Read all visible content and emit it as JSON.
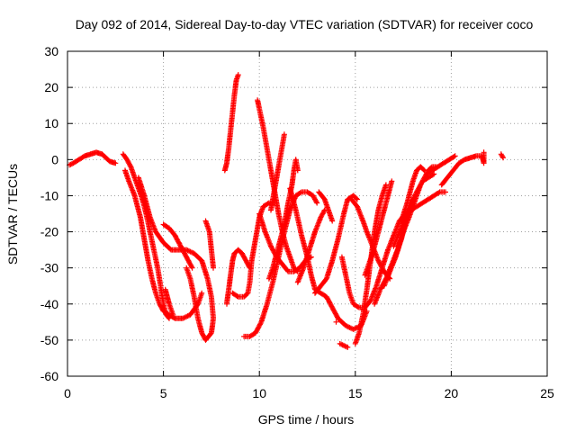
{
  "chart_data": {
    "type": "scatter",
    "title": "Day 092 of 2014, Sidereal Day-to-day VTEC variation (SDTVAR) for receiver coco",
    "xlabel": "GPS time / hours",
    "ylabel": "SDTVAR / TECUs",
    "xlim": [
      0,
      25
    ],
    "ylim": [
      -60,
      30
    ],
    "xticks": [
      0,
      5,
      10,
      15,
      20,
      25
    ],
    "yticks": [
      -60,
      -50,
      -40,
      -30,
      -20,
      -10,
      0,
      10,
      20,
      30
    ],
    "grid": true,
    "marker": "+",
    "color": "#ff0000",
    "series": [
      {
        "points": [
          [
            0.1,
            -1.5
          ],
          [
            0.3,
            -1
          ],
          [
            0.6,
            0
          ],
          [
            0.9,
            1
          ],
          [
            1.2,
            1.5
          ],
          [
            1.5,
            2
          ],
          [
            1.8,
            1.5
          ],
          [
            2.0,
            0.5
          ],
          [
            2.2,
            -0.5
          ],
          [
            2.5,
            -1
          ]
        ]
      },
      {
        "points": [
          [
            2.9,
            1.5
          ],
          [
            3.1,
            0
          ],
          [
            3.3,
            -2
          ],
          [
            3.5,
            -5
          ],
          [
            3.7,
            -8
          ],
          [
            3.9,
            -11
          ],
          [
            4.1,
            -15
          ],
          [
            4.3,
            -20
          ],
          [
            4.5,
            -25
          ],
          [
            4.7,
            -30
          ],
          [
            4.85,
            -35
          ],
          [
            5.0,
            -40
          ],
          [
            5.15,
            -43
          ],
          [
            5.3,
            -44
          ]
        ]
      },
      {
        "points": [
          [
            3.0,
            -3
          ],
          [
            3.2,
            -6
          ],
          [
            3.5,
            -10
          ],
          [
            3.8,
            -16
          ],
          [
            4.0,
            -22
          ],
          [
            4.2,
            -28
          ],
          [
            4.4,
            -33
          ],
          [
            4.6,
            -37
          ],
          [
            4.8,
            -40
          ],
          [
            5.0,
            -42
          ],
          [
            5.3,
            -43
          ],
          [
            5.6,
            -44
          ],
          [
            6.0,
            -44
          ],
          [
            6.4,
            -43
          ],
          [
            6.8,
            -40
          ],
          [
            7.0,
            -37
          ]
        ]
      },
      {
        "points": [
          [
            3.7,
            -5
          ],
          [
            4.0,
            -10
          ],
          [
            4.3,
            -16
          ],
          [
            4.6,
            -20
          ],
          [
            5.0,
            -23
          ],
          [
            5.4,
            -25
          ],
          [
            5.8,
            -25
          ],
          [
            6.2,
            -25
          ],
          [
            6.6,
            -26
          ],
          [
            7.0,
            -28
          ],
          [
            7.3,
            -33
          ],
          [
            7.5,
            -38
          ],
          [
            7.6,
            -44
          ],
          [
            7.5,
            -48
          ],
          [
            7.2,
            -50
          ],
          [
            7.0,
            -48
          ],
          [
            6.8,
            -44
          ],
          [
            6.6,
            -38
          ],
          [
            6.4,
            -33
          ],
          [
            6.2,
            -30
          ]
        ]
      },
      {
        "points": [
          [
            5.0,
            -18
          ],
          [
            5.3,
            -19
          ],
          [
            5.6,
            -21
          ],
          [
            5.9,
            -24
          ],
          [
            6.2,
            -27
          ],
          [
            6.5,
            -30
          ]
        ]
      },
      {
        "points": [
          [
            5.1,
            -36
          ],
          [
            5.2,
            -38
          ],
          [
            5.3,
            -40
          ],
          [
            5.5,
            -43
          ]
        ]
      },
      {
        "points": [
          [
            7.2,
            -17
          ],
          [
            7.4,
            -20
          ],
          [
            7.5,
            -25
          ],
          [
            7.6,
            -30
          ]
        ]
      },
      {
        "points": [
          [
            8.2,
            -3
          ],
          [
            8.3,
            -1
          ],
          [
            8.4,
            3
          ],
          [
            8.5,
            8
          ],
          [
            8.6,
            13
          ],
          [
            8.7,
            18
          ],
          [
            8.8,
            22
          ],
          [
            8.9,
            23.5
          ]
        ]
      },
      {
        "points": [
          [
            8.3,
            -40
          ],
          [
            8.4,
            -36
          ],
          [
            8.5,
            -32
          ],
          [
            8.6,
            -28
          ],
          [
            8.7,
            -26
          ],
          [
            8.9,
            -25
          ],
          [
            9.1,
            -26
          ],
          [
            9.3,
            -28
          ],
          [
            9.5,
            -30
          ]
        ]
      },
      {
        "points": [
          [
            8.6,
            -37
          ],
          [
            8.9,
            -38
          ],
          [
            9.2,
            -38
          ],
          [
            9.4,
            -37
          ],
          [
            9.5,
            -34
          ],
          [
            9.6,
            -28
          ],
          [
            9.8,
            -22
          ],
          [
            10.0,
            -16
          ],
          [
            10.2,
            -13
          ],
          [
            10.5,
            -12
          ],
          [
            10.8,
            -12
          ]
        ]
      },
      {
        "points": [
          [
            9.9,
            16.5
          ],
          [
            10.0,
            14
          ],
          [
            10.2,
            9
          ],
          [
            10.4,
            3
          ],
          [
            10.6,
            -3
          ],
          [
            10.8,
            -9
          ],
          [
            11.0,
            -15
          ],
          [
            11.2,
            -20
          ],
          [
            11.4,
            -24
          ],
          [
            11.6,
            -27
          ],
          [
            11.8,
            -30
          ],
          [
            12.0,
            -31
          ]
        ]
      },
      {
        "points": [
          [
            9.2,
            -49
          ],
          [
            9.5,
            -49
          ],
          [
            9.8,
            -48
          ],
          [
            10.1,
            -45
          ],
          [
            10.4,
            -40
          ],
          [
            10.7,
            -34
          ],
          [
            11.0,
            -27
          ],
          [
            11.3,
            -20
          ],
          [
            11.6,
            -14
          ],
          [
            11.9,
            -10
          ],
          [
            12.2,
            -9
          ],
          [
            12.5,
            -9
          ],
          [
            12.8,
            -10
          ],
          [
            13.0,
            -12
          ]
        ]
      },
      {
        "points": [
          [
            10.0,
            -15
          ],
          [
            10.3,
            -20
          ],
          [
            10.6,
            -24
          ],
          [
            10.9,
            -27
          ],
          [
            11.2,
            -29
          ],
          [
            11.5,
            -31
          ],
          [
            11.8,
            -31
          ],
          [
            12.1,
            -30
          ],
          [
            12.4,
            -28
          ],
          [
            12.7,
            -27
          ]
        ]
      },
      {
        "points": [
          [
            10.6,
            -14
          ],
          [
            10.8,
            -8
          ],
          [
            11.0,
            -2
          ],
          [
            11.2,
            4
          ],
          [
            11.3,
            7
          ]
        ]
      },
      {
        "points": [
          [
            10.5,
            -33
          ],
          [
            10.7,
            -30
          ],
          [
            10.9,
            -26
          ],
          [
            11.1,
            -22
          ],
          [
            11.3,
            -18
          ],
          [
            11.5,
            -12
          ],
          [
            11.7,
            -7
          ],
          [
            11.8,
            -3
          ],
          [
            11.9,
            0
          ],
          [
            12.0,
            -3
          ]
        ]
      },
      {
        "points": [
          [
            11.6,
            -8
          ],
          [
            11.9,
            -14
          ],
          [
            12.2,
            -21
          ],
          [
            12.5,
            -27
          ],
          [
            12.7,
            -32
          ],
          [
            12.9,
            -36
          ],
          [
            13.2,
            -37
          ],
          [
            13.5,
            -38
          ],
          [
            13.8,
            -41
          ],
          [
            14.1,
            -44
          ],
          [
            14.5,
            -46
          ],
          [
            14.9,
            -47
          ],
          [
            15.3,
            -46
          ],
          [
            15.6,
            -42
          ]
        ]
      },
      {
        "points": [
          [
            12.0,
            -34
          ],
          [
            12.3,
            -30
          ],
          [
            12.6,
            -25
          ],
          [
            12.9,
            -20
          ],
          [
            13.2,
            -16
          ],
          [
            13.4,
            -14
          ]
        ]
      },
      {
        "points": [
          [
            12.9,
            -37
          ],
          [
            13.2,
            -35
          ],
          [
            13.5,
            -33
          ],
          [
            13.8,
            -28
          ],
          [
            14.1,
            -22
          ],
          [
            14.4,
            -15
          ],
          [
            14.6,
            -11
          ],
          [
            14.9,
            -10
          ],
          [
            15.1,
            -11
          ]
        ]
      },
      {
        "points": [
          [
            13.1,
            -9
          ],
          [
            13.4,
            -11
          ],
          [
            13.6,
            -14
          ],
          [
            13.8,
            -17
          ]
        ]
      },
      {
        "points": [
          [
            14.0,
            -45
          ]
        ]
      },
      {
        "points": [
          [
            14.2,
            -51
          ],
          [
            14.4,
            -51.5
          ],
          [
            14.6,
            -52
          ]
        ]
      },
      {
        "points": [
          [
            14.3,
            -27
          ],
          [
            14.5,
            -32
          ],
          [
            14.7,
            -37
          ],
          [
            14.9,
            -40
          ],
          [
            15.2,
            -41
          ],
          [
            15.5,
            -41
          ],
          [
            15.8,
            -39
          ],
          [
            16.1,
            -35
          ],
          [
            16.4,
            -30
          ],
          [
            16.7,
            -25
          ],
          [
            17.0,
            -21
          ],
          [
            17.3,
            -17
          ],
          [
            17.6,
            -15
          ],
          [
            17.9,
            -14
          ],
          [
            18.2,
            -13
          ],
          [
            18.5,
            -12
          ],
          [
            18.8,
            -11
          ],
          [
            19.1,
            -10
          ],
          [
            19.4,
            -9
          ],
          [
            19.7,
            -9
          ]
        ]
      },
      {
        "points": [
          [
            14.8,
            -11
          ],
          [
            15.1,
            -13
          ],
          [
            15.4,
            -17
          ],
          [
            15.6,
            -20
          ],
          [
            15.9,
            -24
          ],
          [
            16.2,
            -28
          ],
          [
            16.5,
            -31
          ],
          [
            16.8,
            -33
          ]
        ]
      },
      {
        "points": [
          [
            15.0,
            -51
          ],
          [
            15.2,
            -48
          ],
          [
            15.4,
            -43
          ],
          [
            15.6,
            -36
          ],
          [
            15.8,
            -28
          ],
          [
            16.0,
            -20
          ],
          [
            16.2,
            -14
          ],
          [
            16.4,
            -10
          ],
          [
            16.6,
            -7
          ]
        ]
      },
      {
        "points": [
          [
            15.5,
            -32
          ],
          [
            15.7,
            -29
          ],
          [
            15.9,
            -26
          ],
          [
            16.1,
            -22
          ],
          [
            16.3,
            -18
          ],
          [
            16.5,
            -14
          ],
          [
            16.7,
            -10
          ],
          [
            16.9,
            -6
          ]
        ]
      },
      {
        "points": [
          [
            16.0,
            -40
          ],
          [
            16.3,
            -36
          ],
          [
            16.6,
            -33
          ],
          [
            16.9,
            -29
          ],
          [
            17.2,
            -25
          ],
          [
            17.5,
            -20
          ],
          [
            17.8,
            -16
          ],
          [
            18.0,
            -13
          ],
          [
            18.2,
            -10
          ],
          [
            18.4,
            -7
          ],
          [
            18.6,
            -5
          ],
          [
            18.8,
            -3
          ],
          [
            19.0,
            -2
          ],
          [
            19.3,
            -2
          ]
        ]
      },
      {
        "points": [
          [
            16.5,
            -35
          ],
          [
            16.8,
            -31
          ],
          [
            17.1,
            -27
          ],
          [
            17.4,
            -22
          ],
          [
            17.6,
            -18
          ],
          [
            17.8,
            -14
          ],
          [
            18.1,
            -10
          ],
          [
            18.4,
            -7
          ],
          [
            18.7,
            -4
          ],
          [
            19.0,
            -3
          ],
          [
            19.3,
            -2
          ],
          [
            19.6,
            -1
          ],
          [
            19.9,
            0
          ],
          [
            20.2,
            1
          ]
        ]
      },
      {
        "points": [
          [
            17.0,
            -24
          ],
          [
            17.3,
            -20
          ],
          [
            17.6,
            -16
          ],
          [
            17.9,
            -12
          ],
          [
            18.2,
            -9
          ],
          [
            18.5,
            -6
          ],
          [
            18.8,
            -5
          ],
          [
            19.1,
            -4
          ]
        ]
      },
      {
        "points": [
          [
            17.4,
            -17
          ],
          [
            17.7,
            -12
          ],
          [
            18.0,
            -6
          ],
          [
            18.2,
            -3
          ],
          [
            18.4,
            -2
          ],
          [
            18.6,
            -3
          ]
        ]
      },
      {
        "points": [
          [
            19.5,
            -7
          ],
          [
            19.8,
            -5
          ],
          [
            20.1,
            -3
          ],
          [
            20.4,
            -1
          ],
          [
            20.7,
            0
          ],
          [
            21.0,
            0.5
          ],
          [
            21.3,
            1
          ],
          [
            21.6,
            1
          ],
          [
            21.7,
            -1
          ],
          [
            21.7,
            2
          ]
        ]
      },
      {
        "points": [
          [
            22.6,
            1.5
          ],
          [
            22.7,
            0.5
          ]
        ]
      }
    ]
  }
}
